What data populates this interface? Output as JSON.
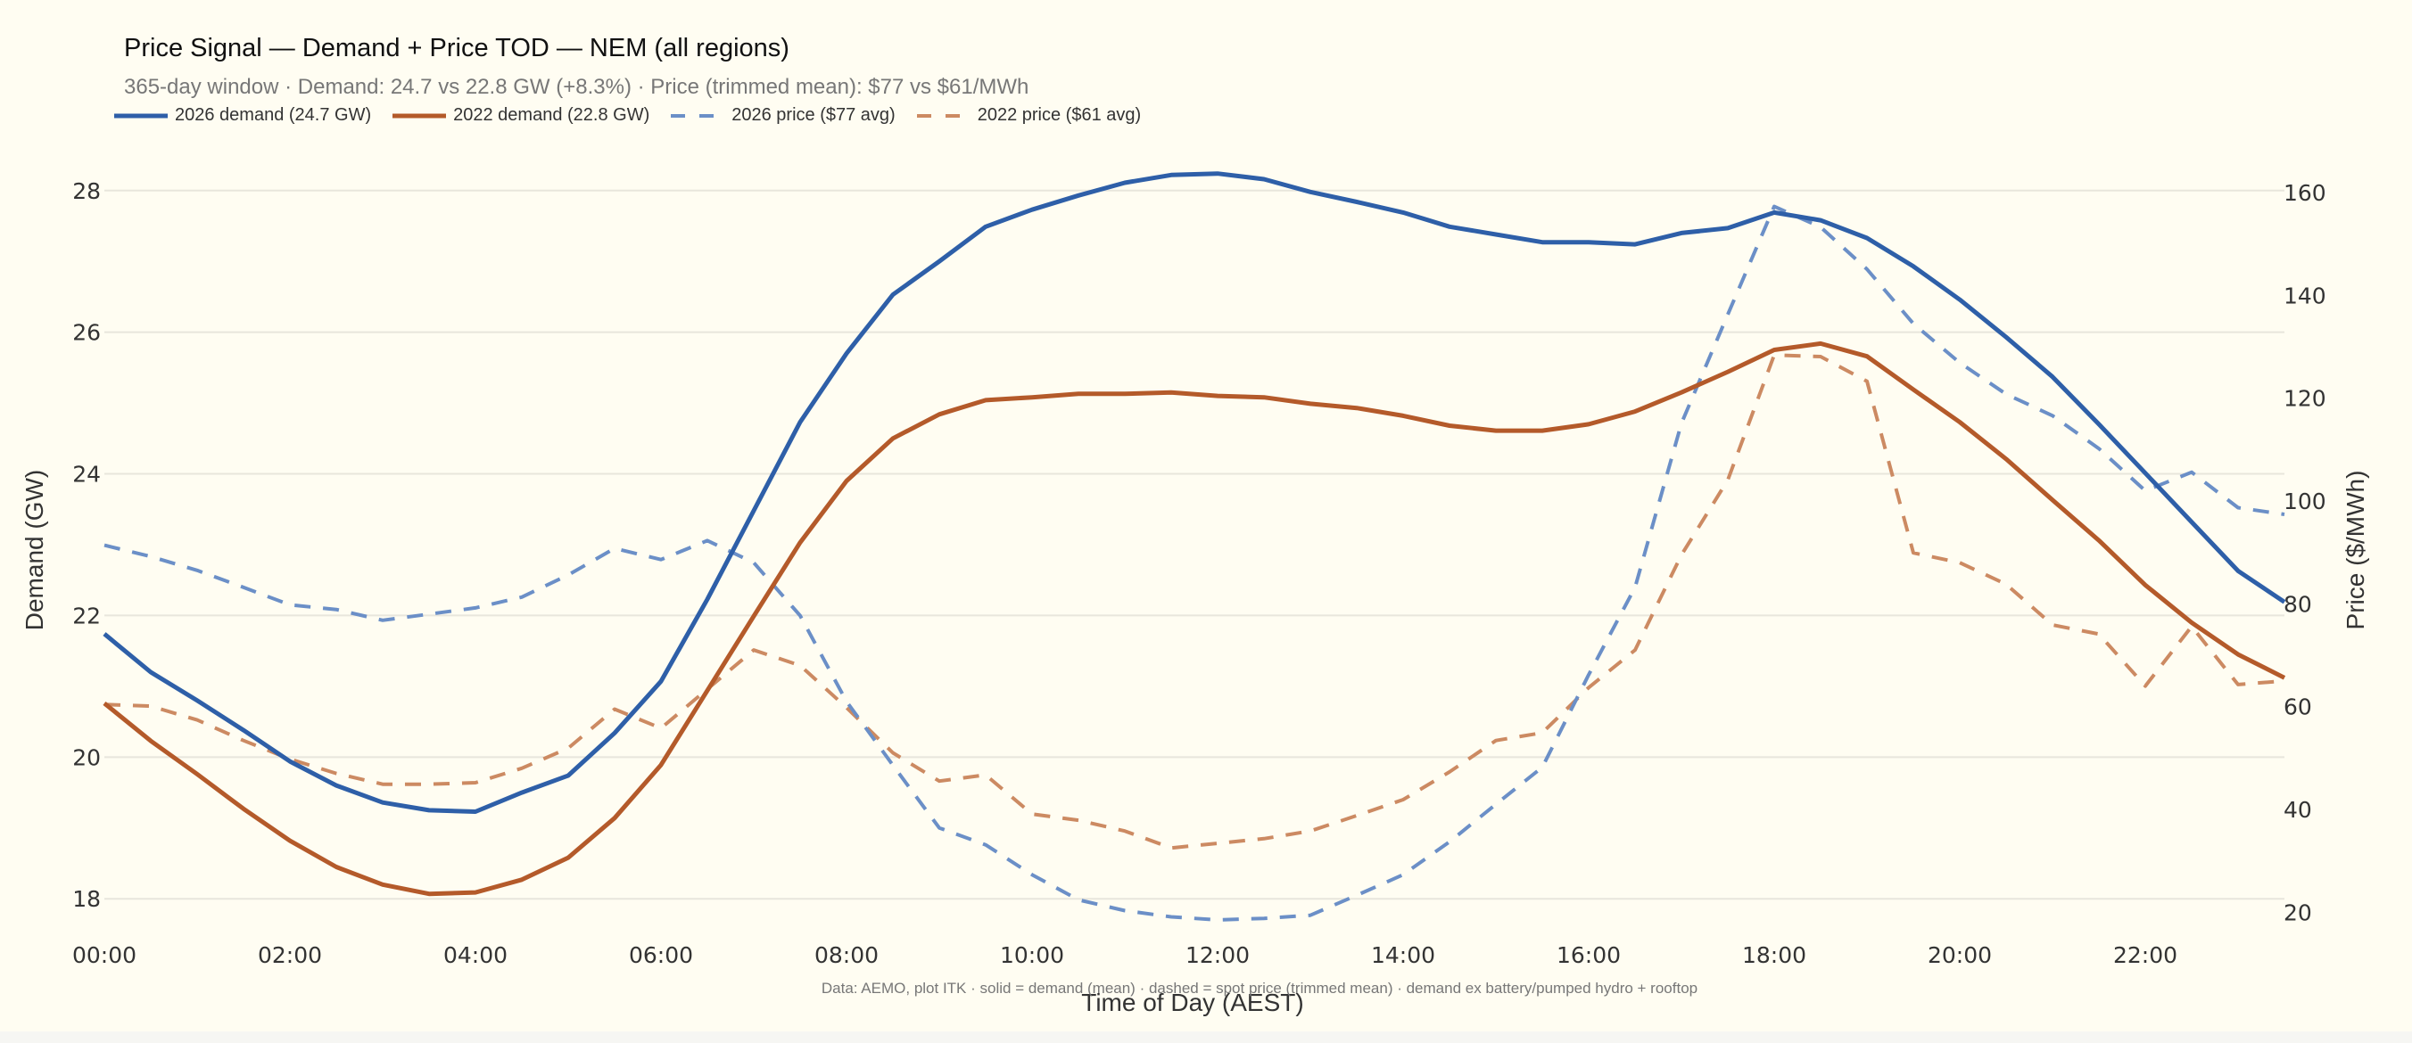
{
  "header": {
    "title": "Price Signal — Demand + Price TOD — NEM (all regions)",
    "subtitle": "365-day window  ·  Demand: 24.7 vs 22.8 GW (+8.3%)  ·  Price (trimmed mean): $77 vs $61/MWh"
  },
  "legend": [
    {
      "label": "2026 demand (24.7 GW)",
      "color": "#2e5fa8",
      "style": "solid"
    },
    {
      "label": "2022 demand (22.8 GW)",
      "color": "#b45a2a",
      "style": "solid"
    },
    {
      "label": "2026 price ($77 avg)",
      "color": "#6b8fc7",
      "style": "dashed"
    },
    {
      "label": "2022 price ($61 avg)",
      "color": "#cc8a62",
      "style": "dashed"
    }
  ],
  "footnote": "Data: AEMO, plot ITK  ·  solid = demand (mean)  ·  dashed = spot price (trimmed mean)  ·  demand ex battery/pumped hydro + rooftop",
  "chart_data": {
    "type": "line",
    "title": "Price Signal — Demand + Price TOD — NEM (all regions)",
    "xlabel": "Time of Day (AEST)",
    "ylabel": "Demand (GW)",
    "y2label": "Price ($/MWh)",
    "ylim": [
      17.6,
      28.45
    ],
    "y2lim": [
      17.1,
      166.6
    ],
    "yticks": [
      18,
      20,
      22,
      24,
      26,
      28
    ],
    "y2ticks": [
      20,
      40,
      60,
      80,
      100,
      120,
      140,
      160
    ],
    "xticks": [
      "00:00",
      "02:00",
      "04:00",
      "06:00",
      "08:00",
      "10:00",
      "12:00",
      "14:00",
      "16:00",
      "18:00",
      "20:00",
      "22:00"
    ],
    "grid": true,
    "legend_position": "top-left",
    "x": [
      "00:00",
      "00:30",
      "01:00",
      "01:30",
      "02:00",
      "02:30",
      "03:00",
      "03:30",
      "04:00",
      "04:30",
      "05:00",
      "05:30",
      "06:00",
      "06:30",
      "07:00",
      "07:30",
      "08:00",
      "08:30",
      "09:00",
      "09:30",
      "10:00",
      "10:30",
      "11:00",
      "11:30",
      "12:00",
      "12:30",
      "13:00",
      "13:30",
      "14:00",
      "14:30",
      "15:00",
      "15:30",
      "16:00",
      "16:30",
      "17:00",
      "17:30",
      "18:00",
      "18:30",
      "19:00",
      "19:30",
      "20:00",
      "20:30",
      "21:00",
      "21:30",
      "22:00",
      "22:30",
      "23:00",
      "23:30"
    ],
    "series": [
      {
        "name": "2026 demand (24.7 GW)",
        "axis": "left",
        "color": "#2e5fa8",
        "dashed": false,
        "values": [
          21.74,
          21.2,
          20.8,
          20.38,
          19.94,
          19.6,
          19.36,
          19.25,
          19.23,
          19.5,
          19.74,
          20.34,
          21.07,
          22.23,
          23.48,
          24.73,
          25.7,
          26.53,
          27.0,
          27.49,
          27.73,
          27.93,
          28.11,
          28.22,
          28.24,
          28.16,
          27.98,
          27.84,
          27.69,
          27.49,
          27.38,
          27.27,
          27.27,
          27.24,
          27.4,
          27.47,
          27.69,
          27.58,
          27.33,
          26.93,
          26.46,
          25.93,
          25.37,
          24.7,
          24.01,
          23.32,
          22.63,
          22.19
        ]
      },
      {
        "name": "2022 demand (22.8 GW)",
        "axis": "left",
        "color": "#b45a2a",
        "dashed": false,
        "values": [
          20.76,
          20.23,
          19.76,
          19.27,
          18.82,
          18.45,
          18.2,
          18.07,
          18.09,
          18.27,
          18.58,
          19.14,
          19.89,
          20.94,
          21.99,
          23.03,
          23.9,
          24.5,
          24.84,
          25.04,
          25.08,
          25.13,
          25.13,
          25.15,
          25.1,
          25.08,
          24.99,
          24.93,
          24.82,
          24.68,
          24.61,
          24.61,
          24.7,
          24.88,
          25.15,
          25.44,
          25.75,
          25.84,
          25.66,
          25.19,
          24.73,
          24.21,
          23.63,
          23.06,
          22.43,
          21.9,
          21.45,
          21.12
        ]
      },
      {
        "name": "2026 price ($77 avg)",
        "axis": "right",
        "color": "#6b8fc7",
        "dashed": true,
        "values": [
          91.4,
          89.2,
          86.5,
          83.2,
          79.8,
          78.9,
          76.8,
          78.0,
          79.2,
          81.3,
          85.6,
          90.8,
          88.6,
          92.3,
          88.0,
          77.7,
          61.0,
          48.6,
          36.4,
          33.1,
          27.3,
          22.4,
          20.3,
          19.1,
          18.5,
          18.8,
          19.4,
          23.3,
          27.3,
          33.7,
          41.0,
          48.2,
          66.2,
          83.2,
          115.1,
          136.3,
          157.3,
          153.3,
          145.1,
          134.5,
          126.9,
          120.8,
          116.6,
          110.2,
          102.0,
          105.6,
          98.7,
          97.4
        ]
      },
      {
        "name": "2022 price ($61 avg)",
        "axis": "right",
        "color": "#cc8a62",
        "dashed": true,
        "values": [
          60.4,
          60.1,
          57.4,
          53.4,
          49.8,
          47.0,
          44.9,
          44.9,
          45.2,
          48.0,
          51.9,
          59.5,
          55.8,
          63.4,
          71.0,
          68.0,
          59.8,
          51.0,
          45.5,
          46.7,
          39.1,
          37.9,
          35.8,
          32.5,
          33.4,
          34.3,
          35.8,
          38.8,
          41.9,
          47.3,
          53.4,
          54.9,
          63.7,
          71.0,
          89.5,
          104.1,
          128.4,
          128.1,
          123.3,
          89.9,
          88.0,
          83.8,
          75.9,
          74.1,
          64.0,
          75.6,
          64.3,
          65.0
        ]
      }
    ]
  }
}
